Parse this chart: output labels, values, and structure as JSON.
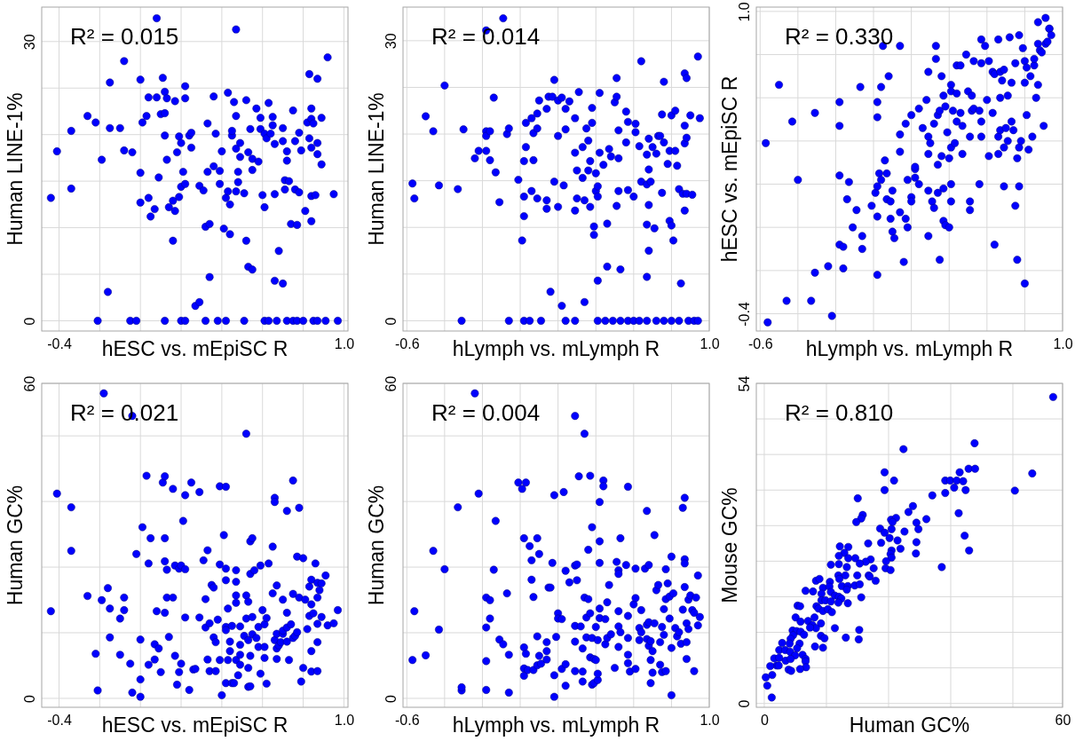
{
  "chart_data": [
    {
      "type": "scatter",
      "xlabel": "hESC vs. mEpiSC R",
      "ylabel": "Human LINE-1%",
      "annotations": [
        "R² = 0.015"
      ],
      "color": "#0000ff",
      "marker": "circle",
      "grid": true,
      "xlim": [
        -0.485,
        1.02
      ],
      "xticks": [
        -0.4,
        {
          "value": -0.2,
          "label": null
        },
        {
          "value": 0,
          "label": null
        },
        {
          "value": 0.2,
          "label": null
        },
        {
          "value": 0.4,
          "label": null
        },
        {
          "value": 0.6,
          "label": null
        },
        {
          "value": 0.8,
          "label": null
        },
        {
          "value": 1,
          "label": "1.0"
        }
      ],
      "ylim": [
        -1.1,
        33.7
      ],
      "yticks": [
        0,
        {
          "value": 5,
          "label": null
        },
        {
          "value": 10,
          "label": null
        },
        {
          "value": 15,
          "label": null
        },
        {
          "value": 20,
          "label": null
        },
        {
          "value": 25,
          "label": null
        },
        30
      ],
      "x": [
        -0.44,
        -0.41,
        -0.34,
        -0.34,
        -0.26,
        -0.22,
        -0.21,
        -0.19,
        -0.16,
        -0.15,
        -0.15,
        -0.1,
        -0.08,
        -0.08,
        -0.04,
        -0.05,
        -0.02,
        0.0,
        0.0,
        0.0,
        0.01,
        0.03,
        0.04,
        0.04,
        0.05,
        0.07,
        0.08,
        0.09,
        0.1,
        0.11,
        0.12,
        0.12,
        0.12,
        0.13,
        0.13,
        0.12,
        0.14,
        0.16,
        0.16,
        0.17,
        0.17,
        0.18,
        0.19,
        0.19,
        0.2,
        0.2,
        0.21,
        0.2,
        0.22,
        0.22,
        0.22,
        0.22,
        0.24,
        0.25,
        0.25,
        0.27,
        0.29,
        0.29,
        0.31,
        0.32,
        0.32,
        0.33,
        0.33,
        0.34,
        0.34,
        0.36,
        0.36,
        0.37,
        0.38,
        0.39,
        0.39,
        0.4,
        0.41,
        0.42,
        0.42,
        0.43,
        0.43,
        0.44,
        0.44,
        0.45,
        0.45,
        0.46,
        0.47,
        0.47,
        0.47,
        0.47,
        0.48,
        0.48,
        0.49,
        0.49,
        0.51,
        0.51,
        0.52,
        0.52,
        0.53,
        0.53,
        0.54,
        0.55,
        0.55,
        0.55,
        0.57,
        0.58,
        0.59,
        0.59,
        0.6,
        0.61,
        0.61,
        0.61,
        0.62,
        0.63,
        0.63,
        0.64,
        0.65,
        0.65,
        0.66,
        0.66,
        0.66,
        0.67,
        0.68,
        0.7,
        0.7,
        0.7,
        0.71,
        0.71,
        0.72,
        0.72,
        0.72,
        0.73,
        0.74,
        0.75,
        0.75,
        0.76,
        0.76,
        0.77,
        0.78,
        0.78,
        0.79,
        0.77,
        0.8,
        0.81,
        0.82,
        0.83,
        0.83,
        0.84,
        0.84,
        0.84,
        0.84,
        0.84,
        0.85,
        0.85,
        0.86,
        0.87,
        0.87,
        0.87,
        0.87,
        0.89,
        0.89,
        0.91,
        0.92,
        0.95,
        0.97,
        0.08
      ],
      "values": [
        13.2,
        18.2,
        20.4,
        14.2,
        22.0,
        21.3,
        0,
        17.3,
        3.1,
        25.6,
        20.7,
        20.7,
        18.3,
        27.9,
        18.1,
        0,
        0,
        25.9,
        15.9,
        12.7,
        21.3,
        22.0,
        13.2,
        24.0,
        11.2,
        12.0,
        24.0,
        15.4,
        22.2,
        26.1,
        22.3,
        24.6,
        19.9,
        17.3,
        23.9,
        0,
        12.2,
        12.9,
        8.6,
        23.6,
        11.8,
        18.1,
        13.3,
        19.8,
        19.1,
        14.4,
        16.0,
        0,
        0,
        25.2,
        23.9,
        14.7,
        19.9,
        20.2,
        18.6,
        1.6,
        2.0,
        14.5,
        14.0,
        0,
        10.1,
        21.2,
        16.0,
        4.7,
        10.4,
        24.1,
        16.6,
        20.1,
        0,
        16.1,
        14.7,
        18.2,
        9.9,
        0,
        13.2,
        13.9,
        24.5,
        12.5,
        9.3,
        19.9,
        20.4,
        23.5,
        31.3,
        13.9,
        22.0,
        18.5,
        16.0,
        14.9,
        19.1,
        17.6,
        13.7,
        0,
        8.6,
        23.7,
        18.1,
        5.8,
        20.6,
        17.4,
        16.2,
        5.5,
        22.8,
        17.1,
        21.8,
        20.6,
        13.5,
        20.1,
        0,
        12.2,
        19.6,
        23.4,
        0,
        20.1,
        21.0,
        21.9,
        4.3,
        19.0,
        13.6,
        0,
        7.5,
        4.0,
        19.3,
        20.7,
        15.1,
        14.1,
        18.2,
        17.2,
        0,
        15.0,
        10.4,
        22.6,
        0,
        14.1,
        19.3,
        10.3,
        20.2,
        13.8,
        18.3,
        0,
        0,
        11.8,
        21.3,
        19.6,
        26.5,
        10.7,
        13.4,
        22.8,
        18.6,
        21.7,
        0,
        21.2,
        13.5,
        19.1,
        26.0,
        0,
        17.9,
        16.8,
        21.8,
        0,
        28.3,
        13.6,
        0,
        32.5
      ]
    },
    {
      "type": "scatter",
      "xlabel": "hLymph vs. mLymph R",
      "ylabel": "Human LINE-1%",
      "annotations": [
        "R² = 0.014"
      ],
      "color": "#0000ff",
      "marker": "circle",
      "grid": true,
      "xlim": [
        -0.62,
        1.0
      ],
      "xticks": [
        -0.6,
        {
          "value": -0.4,
          "label": null
        },
        {
          "value": -0.2,
          "label": null
        },
        {
          "value": 0,
          "label": null
        },
        {
          "value": 0.2,
          "label": null
        },
        {
          "value": 0.4,
          "label": null
        },
        {
          "value": 0.6,
          "label": null
        },
        {
          "value": 0.8,
          "label": null
        },
        {
          "value": 1,
          "label": "1.0"
        }
      ],
      "ylim": [
        -1.1,
        33.6
      ],
      "yticks": [
        0,
        {
          "value": 5,
          "label": null
        },
        {
          "value": 10,
          "label": null
        },
        {
          "value": 15,
          "label": null
        },
        {
          "value": 20,
          "label": null
        },
        {
          "value": 25,
          "label": null
        },
        30
      ],
      "x": [
        -0.57,
        -0.56,
        -0.5,
        -0.46,
        -0.43,
        -0.4,
        -0.33,
        -0.31,
        -0.3,
        -0.24,
        -0.22,
        -0.18,
        -0.18,
        -0.18,
        -0.16,
        -0.16,
        -0.14,
        -0.13,
        -0.11,
        -0.07,
        -0.06,
        -0.06,
        -0.01,
        0.01,
        0.02,
        0.02,
        0.02,
        0.03,
        0.03,
        0.02,
        0.05,
        0.06,
        0.06,
        0.07,
        0.07,
        0.09,
        0.09,
        0.09,
        0.1,
        0.11,
        0.14,
        0.14,
        0.14,
        0.15,
        0.16,
        0.17,
        0.18,
        0.18,
        0.2,
        0.2,
        0.2,
        0.22,
        0.22,
        0.23,
        0.24,
        0.24,
        0.24,
        0.26,
        0.29,
        0.29,
        0.29,
        0.29,
        0.3,
        0.3,
        0.31,
        0.33,
        0.33,
        0.34,
        0.34,
        0.35,
        0.36,
        0.36,
        0.37,
        0.37,
        0.38,
        0.38,
        0.39,
        0.39,
        0.4,
        0.4,
        0.41,
        0.41,
        0.41,
        0.41,
        0.42,
        0.42,
        0.44,
        0.45,
        0.46,
        0.46,
        0.47,
        0.48,
        0.49,
        0.5,
        0.51,
        0.51,
        0.52,
        0.52,
        0.52,
        0.51,
        0.53,
        0.53,
        0.56,
        0.56,
        0.57,
        0.57,
        0.57,
        0.6,
        0.6,
        0.61,
        0.61,
        0.63,
        0.64,
        0.63,
        0.64,
        0.67,
        0.67,
        0.67,
        0.67,
        0.68,
        0.67,
        0.68,
        0.68,
        0.68,
        0.69,
        0.7,
        0.71,
        0.72,
        0.72,
        0.73,
        0.74,
        0.75,
        0.75,
        0.76,
        0.76,
        0.76,
        0.78,
        0.79,
        0.79,
        0.8,
        0.8,
        0.8,
        0.81,
        0.82,
        0.82,
        0.83,
        0.84,
        0.84,
        0.85,
        0.86,
        0.87,
        0.87,
        0.87,
        0.87,
        0.88,
        0.88,
        0.88,
        0.89,
        0.9,
        0.91,
        0.92,
        0.94,
        0.95,
        0.94,
        -0.09,
        -0.18
      ],
      "values": [
        14.7,
        13.1,
        21.9,
        20.3,
        14.5,
        25.2,
        14.1,
        0,
        20.5,
        17.4,
        18.2,
        20.3,
        19.8,
        18.2,
        20.3,
        17.2,
        23.9,
        15.9,
        12.7,
        20.0,
        20.6,
        0,
        15.1,
        8.6,
        11.2,
        17.1,
        13.3,
        21.2,
        18.6,
        0,
        0,
        21.7,
        13.9,
        20.1,
        17.2,
        20.6,
        22.2,
        13.1,
        23.6,
        0,
        22.7,
        12.9,
        12.0,
        24.0,
        3.1,
        24.0,
        14.9,
        25.8,
        12.2,
        23.6,
        19.8,
        23.9,
        1.6,
        14.5,
        20.5,
        22.7,
        0,
        23.5,
        21.7,
        18.0,
        11.8,
        0,
        13.1,
        16.1,
        24.5,
        18.6,
        15.3,
        12.9,
        2.0,
        20.6,
        16.1,
        19.3,
        17.1,
        12.2,
        21.2,
        22.8,
        10.1,
        9.2,
        15.8,
        13.9,
        13.3,
        4.3,
        14.4,
        0,
        24.4,
        18.0,
        16.7,
        0,
        10.4,
        5.8,
        18.4,
        17.6,
        0,
        23.4,
        26.0,
        24.0,
        20.4,
        17.4,
        13.9,
        12.3,
        5.5,
        0,
        22.4,
        19.1,
        14.0,
        21.3,
        0,
        0,
        13.3,
        21.1,
        20.2,
        18.7,
        14.9,
        0,
        27.8,
        10.3,
        17.8,
        4.7,
        14.6,
        12.4,
        0,
        19.5,
        7.5,
        16.2,
        14.9,
        18.6,
        9.9,
        0,
        17.9,
        19.8,
        19.8,
        22.1,
        13.7,
        19.1,
        25.6,
        0,
        16.8,
        10.7,
        18.2,
        22.0,
        10.2,
        0,
        8.6,
        22.5,
        18.2,
        16.6,
        14.1,
        0,
        4.0,
        13.6,
        11.8,
        20.9,
        26.5,
        19.0,
        26.0,
        13.6,
        19.6,
        0,
        22.0,
        13.5,
        0,
        28.3,
        21.7,
        0,
        32.4,
        31.1
      ]
    },
    {
      "type": "scatter",
      "xlabel": "hLymph vs. mLymph R",
      "ylabel": "hESC vs. mEpiSC R",
      "annotations": [
        "R² = 0.330"
      ],
      "color": "#0000ff",
      "marker": "circle",
      "grid": true,
      "xlim": [
        -0.62,
        1.0
      ],
      "xticks": [
        -0.6,
        {
          "value": -0.4,
          "label": null
        },
        {
          "value": -0.2,
          "label": null
        },
        {
          "value": 0,
          "label": null
        },
        {
          "value": 0.2,
          "label": null
        },
        {
          "value": 0.4,
          "label": null
        },
        {
          "value": 0.6,
          "label": null
        },
        {
          "value": 0.8,
          "label": null
        },
        {
          "value": 1,
          "label": "1.0"
        }
      ],
      "ylim": [
        -0.48,
        1.02
      ],
      "yticks": [
        -0.4,
        {
          "value": -0.2,
          "label": null
        },
        {
          "value": 0,
          "label": null
        },
        {
          "value": 0.2,
          "label": null
        },
        {
          "value": 0.4,
          "label": null
        },
        {
          "value": 0.6,
          "label": null
        },
        {
          "value": 0.8,
          "label": null
        },
        {
          "value": 1,
          "label": "1.0"
        }
      ],
      "x": [
        -0.56,
        -0.57,
        -0.5,
        -0.46,
        -0.43,
        -0.4,
        -0.33,
        -0.31,
        -0.31,
        -0.24,
        -0.22,
        -0.18,
        -0.18,
        -0.18,
        -0.18,
        -0.16,
        -0.16,
        -0.14,
        -0.13,
        -0.11,
        -0.09,
        -0.07,
        -0.06,
        -0.06,
        -0.01,
        0.01,
        0.02,
        0.02,
        0.02,
        0.02,
        0.02,
        0.03,
        0.04,
        0.04,
        0.05,
        0.06,
        0.07,
        0.07,
        0.08,
        0.09,
        0.09,
        0.1,
        0.1,
        0.11,
        0.14,
        0.14,
        0.14,
        0.14,
        0.16,
        0.17,
        0.17,
        0.18,
        0.18,
        0.2,
        0.2,
        0.2,
        0.22,
        0.22,
        0.22,
        0.24,
        0.24,
        0.26,
        0.28,
        0.29,
        0.29,
        0.29,
        0.29,
        0.29,
        0.3,
        0.31,
        0.32,
        0.32,
        0.33,
        0.33,
        0.34,
        0.34,
        0.34,
        0.35,
        0.35,
        0.36,
        0.36,
        0.37,
        0.37,
        0.37,
        0.38,
        0.38,
        0.39,
        0.4,
        0.4,
        0.41,
        0.41,
        0.41,
        0.41,
        0.41,
        0.42,
        0.43,
        0.44,
        0.44,
        0.44,
        0.46,
        0.46,
        0.47,
        0.47,
        0.49,
        0.5,
        0.51,
        0.51,
        0.51,
        0.52,
        0.52,
        0.53,
        0.53,
        0.56,
        0.56,
        0.57,
        0.57,
        0.57,
        0.57,
        0.59,
        0.6,
        0.61,
        0.61,
        0.63,
        0.63,
        0.64,
        0.64,
        0.66,
        0.66,
        0.66,
        0.67,
        0.67,
        0.67,
        0.68,
        0.69,
        0.69,
        0.69,
        0.7,
        0.71,
        0.71,
        0.72,
        0.73,
        0.73,
        0.74,
        0.75,
        0.75,
        0.76,
        0.76,
        0.77,
        0.77,
        0.77,
        0.78,
        0.79,
        0.8,
        0.8,
        0.8,
        0.81,
        0.81,
        0.82,
        0.83,
        0.84,
        0.85,
        0.85,
        0.86,
        0.87,
        0.87,
        0.87,
        0.88,
        0.89,
        0.9,
        0.91,
        0.91,
        0.92,
        0.93,
        0.93,
        0.94
      ],
      "values": [
        -0.44,
        0.39,
        0.66,
        -0.34,
        0.49,
        0.22,
        -0.34,
        -0.21,
        0.53,
        -0.18,
        -0.41,
        0.58,
        0.47,
        0.24,
        -0.08,
        -0.09,
        -0.19,
        0.13,
        0.21,
        0.0,
        0.08,
        0.65,
        -0.1,
        -0.04,
        0.1,
        0.16,
        0.05,
        0.51,
        0.58,
        0.19,
        -0.22,
        0.25,
        0.22,
        0.65,
        0.84,
        0.31,
        0.25,
        0.13,
        0.7,
        0.04,
        0.12,
        -0.02,
        0.17,
        -0.05,
        0.43,
        0.07,
        0.84,
        0.35,
        -0.16,
        0.04,
        0.48,
        0.22,
        0.0,
        0.14,
        0.52,
        0.12,
        0.23,
        0.27,
        0.28,
        0.55,
        0.2,
        0.46,
        0.59,
        0.17,
        -0.04,
        0.34,
        0.72,
        0.42,
        0.39,
        0.12,
        0.48,
        0.09,
        0.84,
        0.78,
        0.29,
        0.16,
        0.52,
        -0.15,
        0.54,
        0.7,
        0.33,
        0.18,
        0.61,
        0.03,
        0.01,
        0.56,
        0.44,
        0.32,
        0.0,
        0.66,
        0.2,
        0.63,
        0.37,
        0.12,
        0.54,
        0.39,
        0.75,
        0.49,
        0.62,
        0.75,
        0.53,
        0.34,
        0.47,
        0.8,
        0.63,
        0.12,
        0.08,
        0.42,
        0.54,
        0.61,
        0.77,
        0.55,
        0.54,
        0.2,
        0.76,
        0.42,
        0.49,
        0.87,
        0.84,
        0.59,
        0.33,
        0.77,
        0.53,
        0.72,
        0.71,
        -0.08,
        0.87,
        0.42,
        0.34,
        0.72,
        0.45,
        0.6,
        0.68,
        0.37,
        0.73,
        0.19,
        0.46,
        0.4,
        0.61,
        0.88,
        0.67,
        0.49,
        0.45,
        0.1,
        0.76,
        -0.15,
        0.32,
        0.19,
        0.37,
        0.89,
        0.4,
        0.83,
        0.67,
        -0.26,
        0.77,
        0.52,
        0.74,
        0.36,
        0.7,
        0.42,
        0.75,
        0.78,
        0.6,
        0.66,
        0.85,
        0.95,
        0.82,
        0.81,
        0.47,
        0.97,
        0.85,
        0.86,
        0.92,
        0.92,
        0.89
      ]
    },
    {
      "type": "scatter",
      "xlabel": "hESC vs. mEpiSC R",
      "ylabel": "Human GC%",
      "annotations": [
        "R² = 0.021"
      ],
      "color": "#0000ff",
      "marker": "circle",
      "grid": true,
      "xlim": [
        -0.485,
        1.02
      ],
      "xticks": [
        -0.4,
        {
          "value": -0.2,
          "label": null
        },
        {
          "value": 0,
          "label": null
        },
        {
          "value": 0.2,
          "label": null
        },
        {
          "value": 0.4,
          "label": null
        },
        {
          "value": 0.6,
          "label": null
        },
        {
          "value": 0.8,
          "label": null
        },
        {
          "value": 1,
          "label": "1.0"
        }
      ],
      "ylim": [
        -1.7,
        60
      ],
      "yticks": [
        0,
        {
          "value": 12.5,
          "label": null
        },
        {
          "value": 25,
          "label": null
        },
        {
          "value": 37.5,
          "label": null
        },
        {
          "value": 50,
          "label": null
        },
        60
      ],
      "x": [
        -0.44,
        -0.41,
        -0.34,
        -0.34,
        -0.26,
        -0.22,
        -0.21,
        -0.19,
        -0.16,
        -0.15,
        -0.15,
        -0.1,
        -0.1,
        -0.08,
        -0.08,
        -0.05,
        -0.04,
        -0.02,
        0.0,
        0.0,
        0.0,
        0.01,
        0.03,
        0.04,
        0.04,
        0.05,
        0.07,
        0.07,
        0.08,
        0.09,
        0.1,
        0.11,
        0.12,
        0.12,
        0.12,
        0.12,
        0.13,
        0.13,
        0.14,
        0.16,
        0.16,
        0.17,
        0.17,
        0.18,
        0.19,
        0.19,
        0.2,
        0.2,
        0.21,
        0.22,
        0.22,
        0.22,
        0.24,
        0.25,
        0.26,
        0.27,
        0.29,
        0.29,
        0.31,
        0.32,
        0.32,
        0.33,
        0.33,
        0.34,
        0.34,
        0.35,
        0.36,
        0.36,
        0.37,
        0.37,
        0.38,
        0.39,
        0.39,
        0.39,
        0.4,
        0.41,
        0.42,
        0.42,
        0.42,
        0.42,
        0.42,
        0.42,
        0.43,
        0.43,
        0.44,
        0.44,
        0.45,
        0.45,
        0.46,
        0.47,
        0.47,
        0.47,
        0.47,
        0.47,
        0.48,
        0.49,
        0.49,
        0.49,
        0.49,
        0.51,
        0.52,
        0.52,
        0.52,
        0.53,
        0.53,
        0.53,
        0.53,
        0.54,
        0.54,
        0.54,
        0.54,
        0.55,
        0.55,
        0.55,
        0.56,
        0.57,
        0.58,
        0.58,
        0.59,
        0.59,
        0.6,
        0.61,
        0.61,
        0.61,
        0.62,
        0.62,
        0.63,
        0.65,
        0.65,
        0.66,
        0.66,
        0.66,
        0.67,
        0.67,
        0.67,
        0.67,
        0.68,
        0.69,
        0.7,
        0.7,
        0.7,
        0.72,
        0.72,
        0.72,
        0.72,
        0.73,
        0.74,
        0.75,
        0.75,
        0.75,
        0.76,
        0.77,
        0.77,
        0.78,
        0.78,
        0.79,
        0.8,
        0.8,
        0.81,
        0.82,
        0.83,
        0.83,
        0.84,
        0.84,
        0.84,
        0.84,
        0.85,
        0.86,
        0.87,
        0.87,
        0.87,
        0.87,
        0.87,
        0.88,
        0.89,
        0.89,
        0.91,
        0.92,
        0.95,
        0.97,
        -0.18,
        -0.04
      ],
      "values": [
        16.6,
        39.0,
        36.4,
        28.1,
        19.5,
        8.5,
        1.5,
        18.7,
        21.0,
        17.1,
        11.6,
        8.3,
        15.2,
        19.2,
        16.8,
        6.6,
        1.1,
        27.5,
        11.2,
        3.6,
        0.3,
        32.6,
        42.4,
        6.4,
        25.7,
        30.5,
        7.4,
        10.3,
        16.6,
        9.5,
        5.0,
        41.1,
        30.5,
        26.1,
        42.3,
        16.3,
        19.2,
        24.5,
        11.7,
        39.9,
        19.2,
        25.3,
        8.1,
        2.6,
        24.7,
        5.0,
        25.3,
        6.6,
        33.8,
        38.7,
        24.6,
        15.4,
        1.6,
        41.1,
        5.5,
        5.6,
        39.3,
        15.4,
        26.3,
        18.9,
        13.5,
        7.4,
        28.2,
        5.2,
        14.3,
        21.6,
        21.1,
        11.6,
        10.7,
        5.2,
        15.0,
        25.5,
        7.3,
        40.4,
        0.6,
        31.1,
        40.3,
        24.7,
        22.5,
        13.6,
        13.0,
        2.9,
        7.3,
        17.1,
        10.8,
        9.0,
        2.9,
        13.8,
        2.9,
        22.2,
        24.4,
        19.6,
        18.2,
        7.3,
        4.4,
        13.7,
        8.3,
        10.2,
        6.4,
        11.9,
        50.4,
        19.6,
        15.2,
        5.8,
        11.1,
        18.4,
        2.2,
        23.7,
        8.1,
        2.3,
        29.9,
        15.5,
        30.5,
        12.2,
        24.4,
        11.5,
        13.6,
        9.8,
        25.3,
        4.7,
        16.8,
        9.8,
        14.1,
        7.7,
        15.3,
        2.8,
        25.7,
        20.0,
        28.9,
        38.2,
        11.1,
        37.4,
        12.3,
        21.5,
        9.5,
        7.5,
        10.1,
        10.7,
        18.8,
        12.3,
        12.9,
        35.7,
        16.3,
        13.5,
        10.8,
        7.3,
        14.1,
        41.5,
        19.9,
        11.5,
        11.9,
        27.0,
        12.6,
        36.3,
        19.2,
        3.2,
        26.7,
        5.8,
        18.8,
        13.2,
        21.3,
        15.7,
        17.9,
        9.0,
        5.1,
        22.6,
        16.2,
        25.7,
        22.0,
        14.2,
        5.2,
        19.2,
        10.7,
        20.6,
        21.9,
        15.5,
        23.4,
        13.9,
        14.3,
        16.8,
        58.1,
        53.8
      ]
    },
    {
      "type": "scatter",
      "xlabel": "hLymph vs. mLymph R",
      "ylabel": "Human GC%",
      "annotations": [
        "R² = 0.004"
      ],
      "color": "#0000ff",
      "marker": "circle",
      "grid": true,
      "xlim": [
        -0.62,
        1.0
      ],
      "xticks": [
        -0.6,
        {
          "value": -0.4,
          "label": null
        },
        {
          "value": -0.2,
          "label": null
        },
        {
          "value": 0,
          "label": null
        },
        {
          "value": 0.2,
          "label": null
        },
        {
          "value": 0.4,
          "label": null
        },
        {
          "value": 0.6,
          "label": null
        },
        {
          "value": 0.8,
          "label": null
        },
        {
          "value": 1,
          "label": "1.0"
        }
      ],
      "ylim": [
        -1.7,
        60
      ],
      "yticks": [
        0,
        {
          "value": 12.5,
          "label": null
        },
        {
          "value": 25,
          "label": null
        },
        {
          "value": 37.5,
          "label": null
        },
        {
          "value": 50,
          "label": null
        },
        60
      ],
      "x": [
        -0.57,
        -0.56,
        -0.5,
        -0.46,
        -0.43,
        -0.4,
        -0.33,
        -0.31,
        -0.31,
        -0.22,
        -0.18,
        -0.18,
        -0.18,
        -0.18,
        -0.16,
        -0.16,
        -0.14,
        -0.13,
        -0.11,
        -0.09,
        -0.07,
        -0.06,
        -0.06,
        -0.01,
        0.01,
        0.02,
        0.02,
        0.02,
        0.02,
        0.03,
        0.03,
        0.04,
        0.05,
        0.06,
        0.06,
        0.07,
        0.07,
        0.09,
        0.09,
        0.09,
        0.1,
        0.1,
        0.11,
        0.14,
        0.14,
        0.14,
        0.15,
        0.16,
        0.17,
        0.18,
        0.18,
        0.18,
        0.19,
        0.2,
        0.2,
        0.22,
        0.22,
        0.23,
        0.24,
        0.24,
        0.24,
        0.26,
        0.29,
        0.29,
        0.29,
        0.29,
        0.29,
        0.3,
        0.3,
        0.31,
        0.32,
        0.33,
        0.33,
        0.33,
        0.34,
        0.34,
        0.35,
        0.35,
        0.36,
        0.36,
        0.37,
        0.37,
        0.37,
        0.38,
        0.38,
        0.38,
        0.39,
        0.39,
        0.4,
        0.4,
        0.41,
        0.41,
        0.41,
        0.42,
        0.42,
        0.42,
        0.42,
        0.42,
        0.44,
        0.44,
        0.45,
        0.45,
        0.46,
        0.46,
        0.47,
        0.48,
        0.5,
        0.51,
        0.52,
        0.52,
        0.52,
        0.52,
        0.52,
        0.53,
        0.53,
        0.56,
        0.57,
        0.57,
        0.57,
        0.57,
        0.57,
        0.58,
        0.6,
        0.61,
        0.61,
        0.61,
        0.63,
        0.63,
        0.64,
        0.64,
        0.66,
        0.67,
        0.67,
        0.67,
        0.68,
        0.68,
        0.68,
        0.69,
        0.69,
        0.69,
        0.7,
        0.7,
        0.71,
        0.71,
        0.72,
        0.73,
        0.74,
        0.74,
        0.75,
        0.75,
        0.76,
        0.76,
        0.77,
        0.77,
        0.77,
        0.78,
        0.79,
        0.79,
        0.8,
        0.8,
        0.81,
        0.82,
        0.83,
        0.84,
        0.85,
        0.86,
        0.86,
        0.87,
        0.87,
        0.87,
        0.87,
        0.88,
        0.88,
        0.88,
        0.89,
        0.89,
        0.9,
        0.91,
        0.92,
        0.92,
        0.93,
        0.94,
        0.94,
        0.95,
        0.8,
        -0.24
      ],
      "values": [
        7.3,
        16.6,
        8.2,
        28.1,
        13.1,
        24.6,
        36.4,
        1.5,
        2.1,
        39.0,
        13.5,
        7.1,
        1.6,
        19.2,
        15.2,
        18.7,
        24.5,
        33.8,
        11.2,
        10.3,
        20.0,
        8.3,
        1.1,
        41.1,
        39.9,
        30.5,
        5.7,
        4.3,
        9.7,
        8.5,
        41.1,
        5.4,
        29.0,
        22.6,
        26.3,
        5.4,
        19.3,
        11.8,
        30.5,
        6.3,
        27.5,
        8.1,
        6.6,
        10.7,
        9.0,
        7.4,
        21.1,
        21.1,
        25.8,
        4.4,
        38.7,
        0.3,
        11.7,
        16.2,
        15.2,
        15.1,
        5.6,
        39.3,
        24.3,
        2.4,
        6.5,
        22.1,
        53.8,
        13.8,
        5.2,
        10.8,
        25.3,
        25.5,
        22.5,
        42.3,
        13.7,
        9.5,
        3.2,
        5.1,
        19.2,
        50.4,
        15.4,
        11.6,
        18.9,
        28.3,
        16.2,
        7.8,
        42.4,
        32.6,
        2.6,
        11.5,
        7.5,
        2.9,
        13.6,
        7.3,
        3.5,
        11.1,
        4.7,
        25.8,
        15.3,
        37.4,
        17.1,
        29.9,
        41.5,
        40.4,
        10.3,
        15.1,
        11.5,
        18.3,
        21.6,
        12.2,
        5.8,
        26.0,
        13.7,
        24.4,
        16.6,
        23.7,
        9.8,
        30.5,
        12.6,
        25.4,
        15.7,
        11.5,
        8.3,
        6.7,
        40.3,
        5.1,
        17.9,
        24.7,
        5.6,
        19.1,
        11.1,
        13.4,
        12.6,
        16.8,
        24.7,
        14.0,
        35.7,
        11.3,
        25.4,
        14.5,
        10.0,
        10.9,
        2.9,
        7.3,
        4.9,
        9.0,
        31.1,
        14.3,
        20.6,
        21.6,
        6.4,
        10.7,
        5.0,
        13.6,
        12.1,
        17.0,
        18.9,
        24.6,
        5.2,
        21.9,
        15.2,
        19.4,
        27.0,
        9.6,
        20.0,
        13.4,
        11.8,
        12.6,
        10.4,
        16.9,
        36.3,
        21.2,
        38.2,
        26.5,
        25.7,
        14.3,
        7.5,
        10.7,
        13.2,
        18.8,
        19.6,
        16.8,
        5.2,
        16.3,
        19.2,
        23.4,
        13.9,
        15.5,
        0.6,
        58.1
      ]
    },
    {
      "type": "scatter",
      "xlabel": "Human GC%",
      "ylabel": "Mouse GC%",
      "annotations": [
        "R² = 0.810"
      ],
      "color": "#0000ff",
      "marker": "circle",
      "grid": true,
      "xlim": [
        -1.6,
        60
      ],
      "xticks": [
        0,
        {
          "value": 12.5,
          "label": null
        },
        {
          "value": 25,
          "label": null
        },
        {
          "value": 37.5,
          "label": null
        },
        {
          "value": 50,
          "label": null
        },
        60
      ],
      "ylim": [
        -0.65,
        54
      ],
      "yticks": [
        0,
        {
          "value": 6,
          "label": null
        },
        {
          "value": 12,
          "label": null
        },
        {
          "value": 18,
          "label": null
        },
        {
          "value": 24,
          "label": null
        },
        {
          "value": 30,
          "label": null
        },
        {
          "value": 36,
          "label": null
        },
        {
          "value": 42,
          "label": null
        },
        {
          "value": 48,
          "label": null
        },
        54
      ],
      "x": [
        58.1,
        42.3,
        28.0,
        24.2,
        53.9,
        26.1,
        39.3,
        41.1,
        42.4,
        36.4,
        37.4,
        38.7,
        40.0,
        38.2,
        40.5,
        24.2,
        50.4,
        36.4,
        33.8,
        18.8,
        29.9,
        29.0,
        39.1,
        19.8,
        19.5,
        32.6,
        25.5,
        26.5,
        25.8,
        18.5,
        30.6,
        23.3,
        25.6,
        31.0,
        24.2,
        28.2,
        25.2,
        40.3,
        26.8,
        23.5,
        20.9,
        30.6,
        27.4,
        41.2,
        25.6,
        15.2,
        16.9,
        16.1,
        15.0,
        16.9,
        30.5,
        25.4,
        25.6,
        18.3,
        21.4,
        24.5,
        20.4,
        19.2,
        13.4,
        15.0,
        22.0,
        24.4,
        25.4,
        16.6,
        35.7,
        14.9,
        16.3,
        18.7,
        21.0,
        21.2,
        22.4,
        15.1,
        10.4,
        11.1,
        13.2,
        15.6,
        16.8,
        18.2,
        19.2,
        11.8,
        13.1,
        8.3,
        9.8,
        16.6,
        13.4,
        11.5,
        14.2,
        15.0,
        15.5,
        19.5,
        11.5,
        12.3,
        13.4,
        16.8,
        14.9,
        6.7,
        7.2,
        10.5,
        10.9,
        11.8,
        12.8,
        13.6,
        10.1,
        6.3,
        7.3,
        8.8,
        9.7,
        11.4,
        10.4,
        9.2,
        14.2,
        19.1,
        5.7,
        6.5,
        7.3,
        8.0,
        5.8,
        11.4,
        12.1,
        16.4,
        19.0,
        5.3,
        3.6,
        5.1,
        7.1,
        6.6,
        10.2,
        11.8,
        3.0,
        4.2,
        5.2,
        7.7,
        6.2,
        2.0,
        3.0,
        4.3,
        5.3,
        8.3,
        8.3,
        2.5,
        2.9,
        1.2,
        8.4,
        7.2,
        4.9,
        5.4,
        1.6,
        0.3,
        0.6,
        1.5
      ],
      "values": [
        51.7,
        43.9,
        42.9,
        39.0,
        38.8,
        37.6,
        39.0,
        39.6,
        39.6,
        37.6,
        37.6,
        37.6,
        37.5,
        36.4,
        36.0,
        36.0,
        35.9,
        35.5,
        35.1,
        34.6,
        33.3,
        32.3,
        32.1,
        31.8,
        31.2,
        31.1,
        31.0,
        31.3,
        30.6,
        30.6,
        30.5,
        29.5,
        29.4,
        29.4,
        28.8,
        29.0,
        27.9,
        28.3,
        27.5,
        27.1,
        27.0,
        27.2,
        26.1,
        25.8,
        25.8,
        26.5,
        26.4,
        25.4,
        24.9,
        24.5,
        25.3,
        25.2,
        24.6,
        24.5,
        24.3,
        24.0,
        23.9,
        23.6,
        23.4,
        23.5,
        22.8,
        22.8,
        22.5,
        23.0,
        23.0,
        21.6,
        21.6,
        21.6,
        21.6,
        21.4,
        20.7,
        21.0,
        20.7,
        21.0,
        20.5,
        19.8,
        19.8,
        19.9,
        20.1,
        19.5,
        19.7,
        19.0,
        18.9,
        19.2,
        18.8,
        18.5,
        18.2,
        18.0,
        17.7,
        17.9,
        17.4,
        17.4,
        17.2,
        16.9,
        17.0,
        16.5,
        16.4,
        16.4,
        16.0,
        15.6,
        15.9,
        15.4,
        14.5,
        14.5,
        13.8,
        13.9,
        13.2,
        13.5,
        12.7,
        12.8,
        12.7,
        12.4,
        12.3,
        12.2,
        12.1,
        11.6,
        11.5,
        11.4,
        11.0,
        11.1,
        10.8,
        10.9,
        10.2,
        10.1,
        10.1,
        9.3,
        9.6,
        9.4,
        9.0,
        9.0,
        8.7,
        8.2,
        8.1,
        7.6,
        7.7,
        7.2,
        7.5,
        7.5,
        7.1,
        6.4,
        6.4,
        6.3,
        6.1,
        5.8,
        5.7,
        5.5,
        4.8,
        4.4,
        3.0,
        1.0
      ]
    }
  ]
}
